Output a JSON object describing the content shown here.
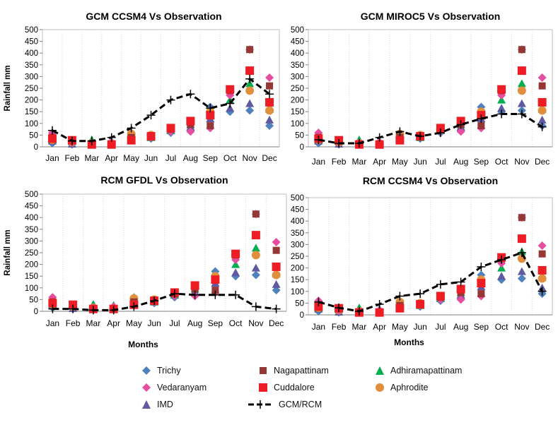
{
  "chart_data": [
    {
      "type": "scatter",
      "title": "GCM CCSM4 Vs Observation",
      "xlabel": "",
      "ylabel": "Rainfall mm",
      "ylim": [
        0,
        500
      ],
      "yticks": [
        0,
        50,
        100,
        150,
        200,
        250,
        300,
        350,
        400,
        450,
        500
      ],
      "categories": [
        "Jan",
        "Feb",
        "Mar",
        "Apr",
        "May",
        "Jun",
        "Jul",
        "Aug",
        "Sep",
        "Oct",
        "Nov",
        "Dec"
      ],
      "series": [
        {
          "name": "Trichy",
          "values": [
            15,
            10,
            20,
            15,
            45,
            35,
            60,
            70,
            170,
            150,
            155,
            90
          ]
        },
        {
          "name": "Vedaranyam",
          "values": [
            60,
            20,
            15,
            20,
            35,
            40,
            65,
            65,
            80,
            220,
            415,
            295
          ]
        },
        {
          "name": "IMD",
          "values": [
            25,
            12,
            25,
            25,
            55,
            45,
            70,
            85,
            120,
            165,
            185,
            115
          ]
        },
        {
          "name": "Nagapattinam",
          "values": [
            40,
            25,
            10,
            10,
            40,
            45,
            75,
            95,
            90,
            240,
            415,
            260
          ]
        },
        {
          "name": "Cuddalore",
          "values": [
            35,
            28,
            10,
            10,
            28,
            45,
            80,
            110,
            135,
            245,
            325,
            190
          ]
        },
        {
          "name": "Adhiramapattinam",
          "values": [
            30,
            25,
            30,
            25,
            60,
            40,
            70,
            95,
            145,
            200,
            270,
            160
          ]
        },
        {
          "name": "Aphrodite",
          "values": [
            30,
            20,
            15,
            10,
            55,
            50,
            75,
            100,
            150,
            240,
            240,
            155
          ]
        },
        {
          "name": "GCM/RCM",
          "values": [
            70,
            25,
            25,
            40,
            80,
            135,
            200,
            225,
            165,
            185,
            290,
            225
          ]
        }
      ]
    },
    {
      "type": "scatter",
      "title": "GCM MIROC5 Vs Observation",
      "xlabel": "",
      "ylabel": "",
      "ylim": [
        0,
        500
      ],
      "yticks": [
        0,
        50,
        100,
        150,
        200,
        250,
        300,
        350,
        400,
        450,
        500
      ],
      "categories": [
        "Jan",
        "Feb",
        "Mar",
        "Apr",
        "May",
        "Jun",
        "Jul",
        "Aug",
        "Sep",
        "Oct",
        "Nov",
        "Dec"
      ],
      "series": [
        {
          "name": "Trichy",
          "values": [
            15,
            10,
            20,
            15,
            45,
            35,
            60,
            70,
            170,
            150,
            155,
            90
          ]
        },
        {
          "name": "Vedaranyam",
          "values": [
            60,
            20,
            15,
            20,
            35,
            40,
            65,
            65,
            80,
            220,
            415,
            295
          ]
        },
        {
          "name": "IMD",
          "values": [
            25,
            12,
            25,
            25,
            55,
            45,
            70,
            85,
            120,
            165,
            185,
            115
          ]
        },
        {
          "name": "Nagapattinam",
          "values": [
            40,
            25,
            10,
            10,
            40,
            45,
            75,
            95,
            90,
            240,
            415,
            260
          ]
        },
        {
          "name": "Cuddalore",
          "values": [
            35,
            28,
            10,
            10,
            28,
            45,
            80,
            110,
            135,
            245,
            325,
            190
          ]
        },
        {
          "name": "Adhiramapattinam",
          "values": [
            30,
            25,
            30,
            25,
            60,
            40,
            70,
            95,
            145,
            200,
            270,
            160
          ]
        },
        {
          "name": "Aphrodite",
          "values": [
            30,
            20,
            15,
            10,
            55,
            50,
            75,
            100,
            150,
            240,
            240,
            155
          ]
        },
        {
          "name": "GCM/RCM",
          "values": [
            30,
            15,
            15,
            40,
            65,
            45,
            60,
            95,
            120,
            140,
            140,
            85
          ]
        }
      ]
    },
    {
      "type": "scatter",
      "title": "RCM  GFDL Vs Observation",
      "xlabel": "Months",
      "ylabel": "Rainfall mm",
      "ylim": [
        0,
        500
      ],
      "yticks": [
        0,
        50,
        100,
        150,
        200,
        250,
        300,
        350,
        400,
        450,
        500
      ],
      "categories": [
        "Jan",
        "Feb",
        "Mar",
        "Apr",
        "May",
        "Jun",
        "Jul",
        "Aug",
        "Sep",
        "Oct",
        "Nov",
        "Dec"
      ],
      "series": [
        {
          "name": "Trichy",
          "values": [
            15,
            10,
            20,
            15,
            45,
            35,
            60,
            70,
            170,
            150,
            155,
            90
          ]
        },
        {
          "name": "Vedaranyam",
          "values": [
            60,
            20,
            15,
            20,
            35,
            40,
            65,
            65,
            80,
            220,
            415,
            295
          ]
        },
        {
          "name": "IMD",
          "values": [
            25,
            12,
            25,
            25,
            55,
            45,
            70,
            85,
            120,
            165,
            185,
            115
          ]
        },
        {
          "name": "Nagapattinam",
          "values": [
            40,
            25,
            10,
            10,
            40,
            45,
            75,
            95,
            90,
            240,
            415,
            260
          ]
        },
        {
          "name": "Cuddalore",
          "values": [
            35,
            28,
            10,
            10,
            28,
            45,
            80,
            110,
            135,
            245,
            325,
            190
          ]
        },
        {
          "name": "Adhiramapattinam",
          "values": [
            30,
            25,
            30,
            25,
            60,
            40,
            70,
            95,
            145,
            200,
            270,
            160
          ]
        },
        {
          "name": "Aphrodite",
          "values": [
            30,
            20,
            15,
            10,
            55,
            50,
            75,
            100,
            150,
            240,
            240,
            155
          ]
        },
        {
          "name": "GCM/RCM",
          "values": [
            10,
            10,
            5,
            5,
            20,
            45,
            75,
            70,
            70,
            70,
            20,
            10
          ]
        }
      ]
    },
    {
      "type": "scatter",
      "title": "RCM  CCSM4 Vs Observation",
      "xlabel": "Months",
      "ylabel": "",
      "ylim": [
        0,
        500
      ],
      "yticks": [
        0,
        50,
        100,
        150,
        200,
        250,
        300,
        350,
        400,
        450,
        500
      ],
      "categories": [
        "Jan",
        "Feb",
        "Mar",
        "Apr",
        "May",
        "Jun",
        "Jul",
        "Aug",
        "Sep",
        "Oct",
        "Nov",
        "Dec"
      ],
      "series": [
        {
          "name": "Trichy",
          "values": [
            15,
            10,
            20,
            15,
            45,
            35,
            60,
            70,
            170,
            150,
            155,
            90
          ]
        },
        {
          "name": "Vedaranyam",
          "values": [
            60,
            20,
            15,
            20,
            35,
            40,
            65,
            65,
            80,
            220,
            415,
            295
          ]
        },
        {
          "name": "IMD",
          "values": [
            25,
            12,
            25,
            25,
            55,
            45,
            70,
            85,
            120,
            165,
            185,
            115
          ]
        },
        {
          "name": "Nagapattinam",
          "values": [
            40,
            25,
            10,
            10,
            40,
            45,
            75,
            95,
            90,
            240,
            415,
            260
          ]
        },
        {
          "name": "Cuddalore",
          "values": [
            35,
            28,
            10,
            10,
            28,
            45,
            80,
            110,
            135,
            245,
            325,
            190
          ]
        },
        {
          "name": "Adhiramapattinam",
          "values": [
            30,
            25,
            30,
            25,
            60,
            40,
            70,
            95,
            145,
            200,
            270,
            160
          ]
        },
        {
          "name": "Aphrodite",
          "values": [
            30,
            20,
            15,
            10,
            55,
            50,
            75,
            100,
            150,
            240,
            240,
            155
          ]
        },
        {
          "name": "GCM/RCM",
          "values": [
            55,
            30,
            15,
            45,
            80,
            90,
            130,
            140,
            205,
            235,
            265,
            100
          ]
        }
      ]
    }
  ],
  "legend": {
    "placement": "bottom",
    "items": [
      {
        "label": "Trichy",
        "marker": "diamond",
        "color": "#4f81bd"
      },
      {
        "label": "Nagapattinam",
        "marker": "square",
        "color": "#953735"
      },
      {
        "label": "Adhiramapattinam",
        "marker": "triangle",
        "color": "#00b050"
      },
      {
        "label": "Vedaranyam",
        "marker": "diamond",
        "color": "#e64da1"
      },
      {
        "label": "Cuddalore",
        "marker": "square",
        "color": "#ee1c24"
      },
      {
        "label": "Aphrodite",
        "marker": "circle",
        "color": "#e18f3c"
      },
      {
        "label": "IMD",
        "marker": "triangle",
        "color": "#5f5aa2"
      },
      {
        "label": "GCM/RCM",
        "marker": "dash-plus",
        "color": "#000000"
      }
    ]
  },
  "style": {
    "grid": true,
    "grid_color": "#d9d9d9",
    "series_colors": {
      "Trichy": "#4f81bd",
      "Vedaranyam": "#e64da1",
      "IMD": "#5f5aa2",
      "Nagapattinam": "#953735",
      "Cuddalore": "#ee1c24",
      "Adhiramapattinam": "#00b050",
      "Aphrodite": "#e18f3c",
      "GCM/RCM": "#000000"
    },
    "series_markers": {
      "Trichy": "diamond",
      "Vedaranyam": "diamond",
      "IMD": "triangle",
      "Nagapattinam": "square",
      "Cuddalore": "square",
      "Adhiramapattinam": "triangle",
      "Aphrodite": "circle",
      "GCM/RCM": "dash-plus"
    }
  }
}
